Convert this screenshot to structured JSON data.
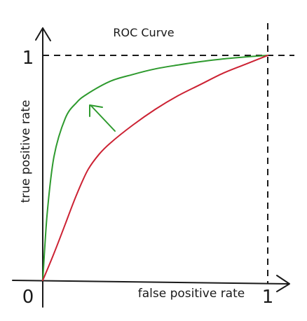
{
  "chart_data": {
    "type": "line",
    "title": "ROC Curve",
    "xlabel": "false positive rate",
    "ylabel": "true positive rate",
    "xlim": [
      0,
      1
    ],
    "ylim": [
      0,
      1
    ],
    "x_ticks": [
      "0",
      "1"
    ],
    "y_ticks": [
      "1"
    ],
    "grid": false,
    "series": [
      {
        "color": "#2e9a2e",
        "x": [
          0,
          0.02,
          0.05,
          0.1,
          0.15,
          0.2,
          0.3,
          0.4,
          0.5,
          0.6,
          0.7,
          0.8,
          0.9,
          1.0
        ],
        "y": [
          0,
          0.3,
          0.55,
          0.72,
          0.79,
          0.83,
          0.885,
          0.915,
          0.94,
          0.957,
          0.972,
          0.984,
          0.993,
          1.0
        ]
      },
      {
        "color": "#cc2233",
        "x": [
          0,
          0.05,
          0.1,
          0.15,
          0.2,
          0.25,
          0.3,
          0.4,
          0.5,
          0.6,
          0.7,
          0.8,
          0.9,
          1.0
        ],
        "y": [
          0,
          0.12,
          0.25,
          0.38,
          0.49,
          0.56,
          0.61,
          0.69,
          0.76,
          0.82,
          0.87,
          0.92,
          0.96,
          1.0
        ]
      }
    ],
    "annotation": {
      "type": "arrow",
      "color": "#2e9a2e",
      "direction": "up-left"
    }
  }
}
